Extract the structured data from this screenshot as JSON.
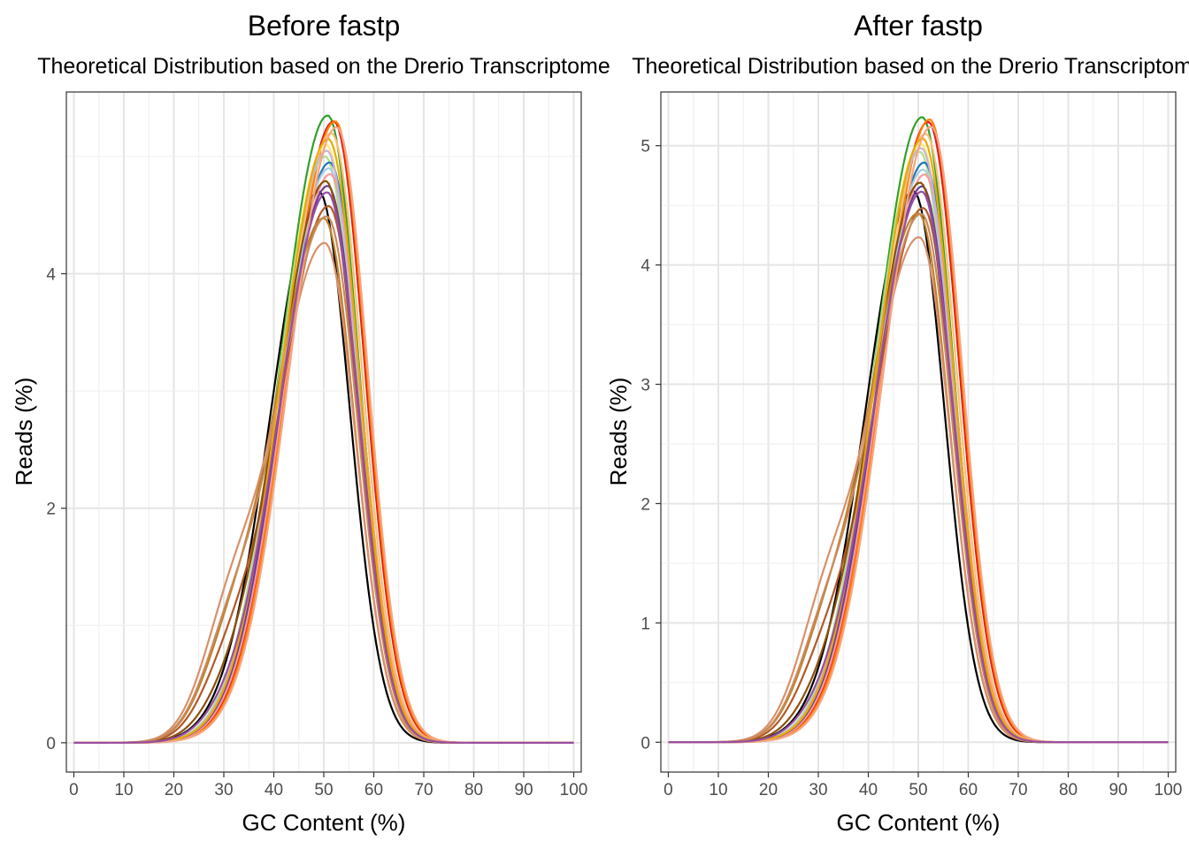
{
  "figure": {
    "panels": [
      {
        "title": "Before fastp",
        "subtitle": "Theoretical Distribution based on the Drerio Transcriptome",
        "xlabel": "GC Content (%)",
        "ylabel": "Reads (%)"
      },
      {
        "title": "After fastp",
        "subtitle": "Theoretical Distribution based on the Drerio Transcriptome",
        "xlabel": "GC Content (%)",
        "ylabel": "Reads (%)"
      }
    ]
  },
  "chart_data": [
    {
      "type": "line",
      "title": "Before fastp",
      "subtitle": "Theoretical Distribution based on the Drerio Transcriptome",
      "xlabel": "GC Content (%)",
      "ylabel": "Reads (%)",
      "xlim": [
        -1.5,
        101.5
      ],
      "ylim": [
        -0.25,
        5.55
      ],
      "xticks": [
        0,
        10,
        20,
        30,
        40,
        50,
        60,
        70,
        80,
        90,
        100
      ],
      "yticks": [
        0,
        2,
        4
      ],
      "grid": true,
      "legend": "none",
      "series_shape": "gc-content density curves, one per sample, rising from ~0 at 10% GC to a peak near 50-52% GC and returning to ~0 by 75-80% GC",
      "series": [
        {
          "color": "#000000",
          "peak_x": 49.0,
          "peak_y": 4.7,
          "shoulder": 0.0
        },
        {
          "color": "#33A02C",
          "peak_x": 50.8,
          "peak_y": 5.35,
          "shoulder": 0.0
        },
        {
          "color": "#E31A1C",
          "peak_x": 52.0,
          "peak_y": 5.3,
          "shoulder": 0.0
        },
        {
          "color": "#FF7F00",
          "peak_x": 52.3,
          "peak_y": 5.3,
          "shoulder": 0.0
        },
        {
          "color": "#FDBF6F",
          "peak_x": 51.5,
          "peak_y": 5.2,
          "shoulder": 0.0
        },
        {
          "color": "#FFED6F",
          "peak_x": 50.5,
          "peak_y": 5.1,
          "shoulder": 0.0
        },
        {
          "color": "#B2DF8A",
          "peak_x": 50.3,
          "peak_y": 5.0,
          "shoulder": 0.0
        },
        {
          "color": "#1F78B4",
          "peak_x": 51.2,
          "peak_y": 4.95,
          "shoulder": 0.0
        },
        {
          "color": "#A6CEE3",
          "peak_x": 51.0,
          "peak_y": 4.9,
          "shoulder": 0.0
        },
        {
          "color": "#FB9A99",
          "peak_x": 51.3,
          "peak_y": 4.85,
          "shoulder": 0.0
        },
        {
          "color": "#6A3D9A",
          "peak_x": 50.8,
          "peak_y": 4.75,
          "shoulder": 0.0
        },
        {
          "color": "#CAB2D6",
          "peak_x": 50.6,
          "peak_y": 5.05,
          "shoulder": 0.0
        },
        {
          "color": "#B15928",
          "peak_x": 51.0,
          "peak_y": 4.6,
          "shoulder": 0.25
        },
        {
          "color": "#8C510A",
          "peak_x": 50.4,
          "peak_y": 4.8,
          "shoulder": 0.1
        },
        {
          "color": "#BF812D",
          "peak_x": 50.0,
          "peak_y": 4.5,
          "shoulder": 0.3
        },
        {
          "color": "#D8906A",
          "peak_x": 50.2,
          "peak_y": 4.3,
          "shoulder": 0.45
        },
        {
          "color": "#C98A5A",
          "peak_x": 50.6,
          "peak_y": 4.52,
          "shoulder": 0.35
        },
        {
          "color": "#E6AB02",
          "peak_x": 50.9,
          "peak_y": 5.15,
          "shoulder": 0.0
        },
        {
          "color": "#F4A582",
          "peak_x": 52.6,
          "peak_y": 5.25,
          "shoulder": 0.0
        },
        {
          "color": "#984EA3",
          "peak_x": 50.7,
          "peak_y": 4.7,
          "shoulder": 0.05
        }
      ]
    },
    {
      "type": "line",
      "title": "After fastp",
      "subtitle": "Theoretical Distribution based on the Drerio Transcriptome",
      "xlabel": "GC Content (%)",
      "ylabel": "Reads (%)",
      "xlim": [
        -1.5,
        101.5
      ],
      "ylim": [
        -0.25,
        5.45
      ],
      "xticks": [
        0,
        10,
        20,
        30,
        40,
        50,
        60,
        70,
        80,
        90,
        100
      ],
      "yticks": [
        0,
        1,
        2,
        3,
        4,
        5
      ],
      "grid": true,
      "legend": "none",
      "series_shape": "gc-content density curves, one per sample, rising from ~0 at 10% GC to a peak near 50-52% GC and returning to ~0 by 75-80% GC",
      "series": [
        {
          "color": "#000000",
          "peak_x": 49.0,
          "peak_y": 4.62,
          "shoulder": 0.0
        },
        {
          "color": "#33A02C",
          "peak_x": 50.8,
          "peak_y": 5.24,
          "shoulder": 0.0
        },
        {
          "color": "#E31A1C",
          "peak_x": 52.0,
          "peak_y": 5.2,
          "shoulder": 0.0
        },
        {
          "color": "#FF7F00",
          "peak_x": 52.3,
          "peak_y": 5.22,
          "shoulder": 0.0
        },
        {
          "color": "#FDBF6F",
          "peak_x": 51.5,
          "peak_y": 5.1,
          "shoulder": 0.0
        },
        {
          "color": "#FFED6F",
          "peak_x": 50.5,
          "peak_y": 5.02,
          "shoulder": 0.0
        },
        {
          "color": "#B2DF8A",
          "peak_x": 50.3,
          "peak_y": 4.95,
          "shoulder": 0.0
        },
        {
          "color": "#1F78B4",
          "peak_x": 51.2,
          "peak_y": 4.86,
          "shoulder": 0.0
        },
        {
          "color": "#A6CEE3",
          "peak_x": 51.0,
          "peak_y": 4.8,
          "shoulder": 0.0
        },
        {
          "color": "#FB9A99",
          "peak_x": 51.3,
          "peak_y": 4.76,
          "shoulder": 0.0
        },
        {
          "color": "#6A3D9A",
          "peak_x": 50.8,
          "peak_y": 4.66,
          "shoulder": 0.0
        },
        {
          "color": "#CAB2D6",
          "peak_x": 50.6,
          "peak_y": 4.98,
          "shoulder": 0.0
        },
        {
          "color": "#B15928",
          "peak_x": 51.0,
          "peak_y": 4.5,
          "shoulder": 0.25
        },
        {
          "color": "#8C510A",
          "peak_x": 50.4,
          "peak_y": 4.7,
          "shoulder": 0.1
        },
        {
          "color": "#BF812D",
          "peak_x": 50.0,
          "peak_y": 4.46,
          "shoulder": 0.3
        },
        {
          "color": "#D8906A",
          "peak_x": 50.2,
          "peak_y": 4.27,
          "shoulder": 0.45
        },
        {
          "color": "#C98A5A",
          "peak_x": 50.6,
          "peak_y": 4.46,
          "shoulder": 0.35
        },
        {
          "color": "#E6AB02",
          "peak_x": 50.9,
          "peak_y": 5.06,
          "shoulder": 0.0
        },
        {
          "color": "#F4A582",
          "peak_x": 52.6,
          "peak_y": 5.16,
          "shoulder": 0.0
        },
        {
          "color": "#984EA3",
          "peak_x": 50.7,
          "peak_y": 4.62,
          "shoulder": 0.05
        }
      ]
    }
  ]
}
